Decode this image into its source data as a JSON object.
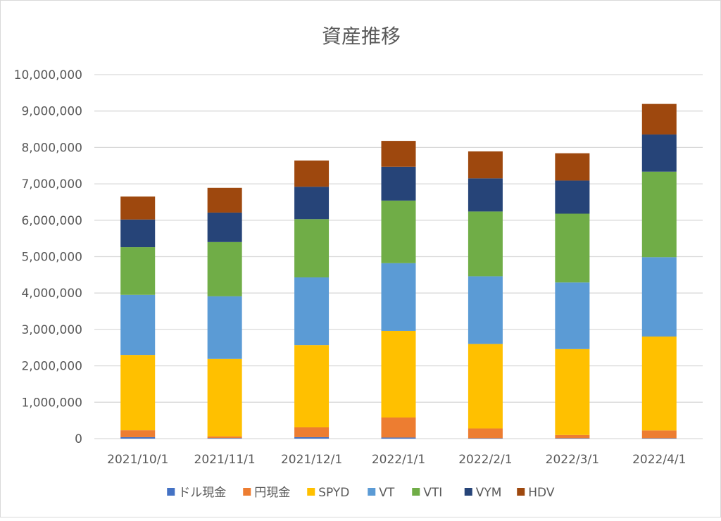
{
  "chart_data": {
    "type": "bar",
    "stacked": true,
    "title": "資産推移",
    "xlabel": "",
    "ylabel": "",
    "ylim": [
      0,
      10000000
    ],
    "ytick_step": 1000000,
    "yticks": [
      "0",
      "1,000,000",
      "2,000,000",
      "3,000,000",
      "4,000,000",
      "5,000,000",
      "6,000,000",
      "7,000,000",
      "8,000,000",
      "9,000,000",
      "10,000,000"
    ],
    "grid": true,
    "legend_position": "bottom",
    "categories": [
      "2021/10/1",
      "2021/11/1",
      "2021/12/1",
      "2022/1/1",
      "2022/2/1",
      "2022/3/1",
      "2022/4/1"
    ],
    "series": [
      {
        "name": "ドル現金",
        "color": "#4472C4",
        "values": [
          40000,
          15000,
          40000,
          30000,
          10000,
          10000,
          10000
        ]
      },
      {
        "name": "円現金",
        "color": "#ED7D31",
        "values": [
          190000,
          45000,
          270000,
          550000,
          270000,
          90000,
          215000
        ]
      },
      {
        "name": "SPYD",
        "color": "#FFC000",
        "values": [
          2070000,
          2130000,
          2260000,
          2380000,
          2320000,
          2360000,
          2580000
        ]
      },
      {
        "name": "VT",
        "color": "#5B9BD5",
        "values": [
          1650000,
          1720000,
          1860000,
          1860000,
          1860000,
          1830000,
          2180000
        ]
      },
      {
        "name": "VTI",
        "color": "#70AD47",
        "values": [
          1310000,
          1490000,
          1600000,
          1720000,
          1780000,
          1890000,
          2350000
        ]
      },
      {
        "name": "VYM",
        "color": "#264478",
        "values": [
          760000,
          810000,
          890000,
          930000,
          910000,
          910000,
          1020000
        ]
      },
      {
        "name": "HDV",
        "color": "#9E480E",
        "values": [
          630000,
          680000,
          720000,
          710000,
          740000,
          750000,
          840000
        ]
      }
    ]
  }
}
